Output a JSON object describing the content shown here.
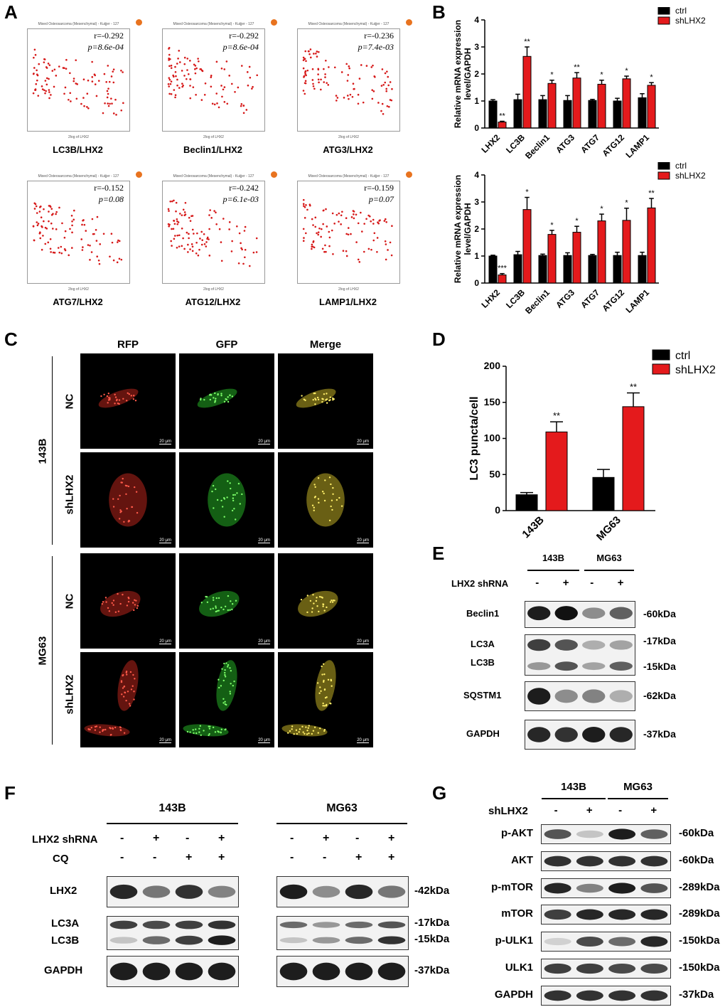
{
  "panels": {
    "A": "A",
    "B": "B",
    "C": "C",
    "D": "D",
    "E": "E",
    "F": "F",
    "G": "G"
  },
  "panelA": {
    "plots": [
      {
        "title": "Mixed Osteosarcoma (Mesenchymal) - Kuijjer - 127",
        "r": "r=-0.292",
        "p": "p=8.6e-04",
        "caption": "LC3B/LHX2",
        "xlabel": "2log of LHX2",
        "n": 100
      },
      {
        "title": "Mixed Osteosarcoma (Mesenchymal) - Kuijjer - 127",
        "r": "r=-0.292",
        "p": "p=8.6e-04",
        "caption": "Beclin1/LHX2",
        "xlabel": "2log of LHX2",
        "n": 100
      },
      {
        "title": "Mixed Osteosarcoma (Mesenchymal) - Kuijjer - 127",
        "r": "r=-0.236",
        "p": "p=7.4e-03",
        "caption": "ATG3/LHX2",
        "xlabel": "2log of LHX2",
        "n": 100
      },
      {
        "title": "Mixed Osteosarcoma (Mesenchymal) - Kuijjer - 127",
        "r": "r=-0.152",
        "p": "p=0.08",
        "caption": "ATG7/LHX2",
        "xlabel": "2log of LHX2",
        "n": 100
      },
      {
        "title": "Mixed Osteosarcoma (Mesenchymal) - Kuijjer - 127",
        "r": "r=-0.242",
        "p": "p=6.1e-03",
        "caption": "ATG12/LHX2",
        "xlabel": "2log of LHX2",
        "n": 100
      },
      {
        "title": "Mixed Osteosarcoma (Mesenchymal) - Kuijjer - 127",
        "r": "r=-0.159",
        "p": "p=0.07",
        "caption": "LAMP1/LHX2",
        "xlabel": "2log of LHX2",
        "n": 100
      }
    ]
  },
  "chart_data": [
    {
      "type": "bar",
      "categories": [
        "LHX2",
        "LC3B",
        "Beclin1",
        "ATG3",
        "ATG7",
        "ATG12",
        "LAMP1"
      ],
      "series": [
        {
          "name": "ctrl",
          "values": [
            1.0,
            1.05,
            1.05,
            1.02,
            1.02,
            1.0,
            1.12
          ],
          "errors": [
            0.05,
            0.2,
            0.15,
            0.18,
            0.04,
            0.1,
            0.15
          ]
        },
        {
          "name": "shLHX2",
          "values": [
            0.22,
            2.65,
            1.65,
            1.85,
            1.62,
            1.82,
            1.58
          ],
          "errors": [
            0.03,
            0.35,
            0.12,
            0.2,
            0.15,
            0.1,
            0.1
          ]
        }
      ],
      "significance": [
        "**",
        "**",
        "*",
        "**",
        "*",
        "*",
        "*"
      ],
      "ylabel": "Relative mRNA expression level/GAPDH",
      "ylim": [
        0,
        4
      ],
      "yticks": [
        0,
        1,
        2,
        3,
        4
      ]
    },
    {
      "type": "bar",
      "categories": [
        "LHX2",
        "LC3B",
        "Beclin1",
        "ATG3",
        "ATG7",
        "ATG12",
        "LAMP1"
      ],
      "series": [
        {
          "name": "ctrl",
          "values": [
            1.0,
            1.05,
            1.02,
            1.02,
            1.02,
            1.02,
            1.02
          ],
          "errors": [
            0.03,
            0.12,
            0.05,
            0.1,
            0.04,
            0.12,
            0.12
          ]
        },
        {
          "name": "shLHX2",
          "values": [
            0.3,
            2.72,
            1.8,
            1.88,
            2.3,
            2.32,
            2.78
          ],
          "errors": [
            0.05,
            0.45,
            0.15,
            0.22,
            0.25,
            0.45,
            0.35
          ]
        }
      ],
      "significance": [
        "***",
        "*",
        "*",
        "*",
        "*",
        "*",
        "**"
      ],
      "ylabel": "Relative mRNA expression level/GAPDH",
      "ylim": [
        0,
        4
      ],
      "yticks": [
        0,
        1,
        2,
        3,
        4
      ]
    },
    {
      "type": "bar",
      "categories": [
        "143B",
        "MG63"
      ],
      "series": [
        {
          "name": "ctrl",
          "values": [
            22,
            46
          ],
          "errors": [
            3,
            11
          ]
        },
        {
          "name": "shLHX2",
          "values": [
            109,
            144
          ],
          "errors": [
            14,
            19
          ]
        }
      ],
      "significance": [
        "**",
        "**"
      ],
      "ylabel": "LC3 puncta/cell",
      "ylim": [
        0,
        200
      ],
      "yticks": [
        0,
        50,
        100,
        150,
        200
      ]
    }
  ],
  "panelC": {
    "cols": [
      "RFP",
      "GFP",
      "Merge"
    ],
    "groups": [
      {
        "name": "143B",
        "rows": [
          "NC",
          "shLHX2"
        ]
      },
      {
        "name": "MG63",
        "rows": [
          "NC",
          "shLHX2"
        ]
      }
    ],
    "scalebar": "20 μm"
  },
  "panelE": {
    "groups": [
      "143B",
      "MG63"
    ],
    "condition_label": "LHX2  shRNA",
    "signs": [
      "-",
      "+",
      "-",
      "+"
    ],
    "rows": [
      {
        "label": "Beclin1",
        "kda": "-60kDa"
      },
      {
        "label": "LC3A",
        "label2": "LC3B",
        "kda": "-17kDa",
        "kda2": "-15kDa"
      },
      {
        "label": "SQSTM1",
        "kda": "-62kDa"
      },
      {
        "label": "GAPDH",
        "kda": "-37kDa"
      }
    ]
  },
  "panelF": {
    "groups": [
      "143B",
      "MG63"
    ],
    "conditions": [
      {
        "label": "LHX2 shRNA",
        "signs": [
          "-",
          "+",
          "-",
          "+"
        ]
      },
      {
        "label": "CQ",
        "signs": [
          "-",
          "-",
          "+",
          "+"
        ]
      }
    ],
    "rows": [
      {
        "label": "LHX2",
        "kda": "-42kDa"
      },
      {
        "label": "LC3A",
        "label2": "LC3B",
        "kda": "-17kDa",
        "kda2": "-15kDa"
      },
      {
        "label": "GAPDH",
        "kda": "-37kDa"
      }
    ]
  },
  "panelG": {
    "groups": [
      "143B",
      "MG63"
    ],
    "condition_label": "shLHX2",
    "signs": [
      "-",
      "+",
      "-",
      "+"
    ],
    "rows": [
      {
        "label": "p-AKT",
        "kda": "-60kDa"
      },
      {
        "label": "AKT",
        "kda": "-60kDa"
      },
      {
        "label": "p-mTOR",
        "kda": "-289kDa"
      },
      {
        "label": "mTOR",
        "kda": "-289kDa"
      },
      {
        "label": "p-ULK1",
        "kda": "-150kDa"
      },
      {
        "label": "ULK1",
        "kda": "-150kDa"
      },
      {
        "label": "GAPDH",
        "kda": "-37kDa"
      }
    ]
  }
}
